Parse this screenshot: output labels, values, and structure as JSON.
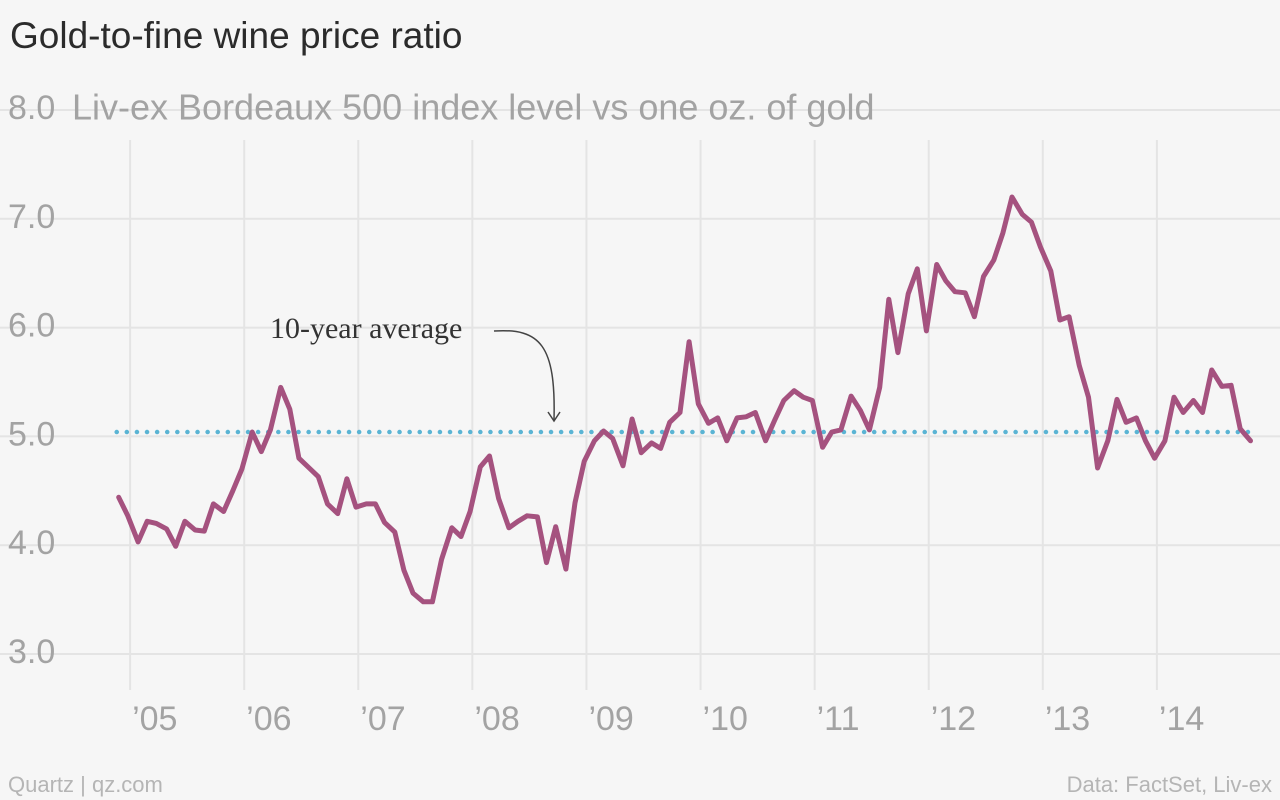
{
  "chart_data": {
    "type": "line",
    "title": "Gold-to-fine wine price ratio",
    "subtitle": "Liv-ex Bordeaux 500 index level vs one oz. of gold",
    "source": "Data: FactSet, Liv-ex",
    "credit": "Quartz | qz.com",
    "x": [
      2004.9,
      2004.98,
      2005.07,
      2005.15,
      2005.23,
      2005.32,
      2005.4,
      2005.48,
      2005.57,
      2005.65,
      2005.73,
      2005.82,
      2005.9,
      2005.98,
      2006.07,
      2006.15,
      2006.23,
      2006.32,
      2006.4,
      2006.48,
      2006.57,
      2006.65,
      2006.73,
      2006.82,
      2006.9,
      2006.98,
      2007.07,
      2007.15,
      2007.23,
      2007.32,
      2007.4,
      2007.48,
      2007.57,
      2007.65,
      2007.73,
      2007.82,
      2007.9,
      2007.98,
      2008.07,
      2008.15,
      2008.23,
      2008.32,
      2008.4,
      2008.48,
      2008.57,
      2008.65,
      2008.73,
      2008.82,
      2008.9,
      2008.98,
      2009.07,
      2009.15,
      2009.23,
      2009.32,
      2009.4,
      2009.48,
      2009.57,
      2009.65,
      2009.73,
      2009.82,
      2009.9,
      2009.98,
      2010.07,
      2010.15,
      2010.23,
      2010.32,
      2010.4,
      2010.48,
      2010.57,
      2010.65,
      2010.73,
      2010.82,
      2010.9,
      2010.98,
      2011.07,
      2011.15,
      2011.23,
      2011.32,
      2011.4,
      2011.48,
      2011.57,
      2011.65,
      2011.73,
      2011.82,
      2011.9,
      2011.98,
      2012.07,
      2012.15,
      2012.23,
      2012.32,
      2012.4,
      2012.48,
      2012.57,
      2012.65,
      2012.73,
      2012.82,
      2012.9,
      2012.98,
      2013.07,
      2013.15,
      2013.23,
      2013.32,
      2013.4,
      2013.48,
      2013.57,
      2013.65,
      2013.73,
      2013.82,
      2013.9,
      2013.98,
      2014.07,
      2014.15,
      2014.23,
      2014.32,
      2014.4,
      2014.48,
      2014.57,
      2014.65,
      2014.73,
      2014.82
    ],
    "series": [
      {
        "name": "Gold-to-fine wine price ratio",
        "color": "#a5527f",
        "values": [
          4.44,
          4.27,
          4.03,
          4.22,
          4.2,
          4.15,
          3.99,
          4.22,
          4.14,
          4.13,
          4.38,
          4.31,
          4.5,
          4.7,
          5.04,
          4.86,
          5.06,
          5.45,
          5.25,
          4.8,
          4.71,
          4.63,
          4.38,
          4.29,
          4.61,
          4.35,
          4.38,
          4.38,
          4.21,
          4.12,
          3.77,
          3.56,
          3.48,
          3.48,
          3.87,
          4.16,
          4.08,
          4.31,
          4.72,
          4.82,
          4.43,
          4.16,
          4.22,
          4.27,
          4.26,
          3.84,
          4.17,
          3.78,
          4.39,
          4.77,
          4.96,
          5.05,
          4.98,
          4.73,
          5.16,
          4.85,
          4.94,
          4.89,
          5.13,
          5.22,
          5.87,
          5.3,
          5.12,
          5.17,
          4.96,
          5.17,
          5.18,
          5.22,
          4.96,
          5.15,
          5.33,
          5.42,
          5.36,
          5.33,
          4.9,
          5.04,
          5.06,
          5.37,
          5.24,
          5.06,
          5.45,
          6.26,
          5.77,
          6.31,
          6.54,
          5.97,
          6.58,
          6.43,
          6.33,
          6.32,
          6.1,
          6.47,
          6.62,
          6.87,
          7.2,
          7.04,
          6.97,
          6.74,
          6.52,
          6.07,
          6.1,
          5.65,
          5.36,
          4.71,
          4.96,
          5.34,
          5.13,
          5.17,
          4.96,
          4.8,
          4.96,
          5.36,
          5.22,
          5.33,
          5.22,
          5.61,
          5.46,
          5.47,
          5.07,
          4.96
        ]
      }
    ],
    "average": {
      "label": "10-year average",
      "value": 5.04,
      "color": "#5ab4d4"
    },
    "xlim": [
      2004,
      2015
    ],
    "xticks": [
      {
        "value": 2005,
        "label": "’05"
      },
      {
        "value": 2006,
        "label": "’06"
      },
      {
        "value": 2007,
        "label": "’07"
      },
      {
        "value": 2008,
        "label": "’08"
      },
      {
        "value": 2009,
        "label": "’09"
      },
      {
        "value": 2010,
        "label": "’10"
      },
      {
        "value": 2011,
        "label": "’11"
      },
      {
        "value": 2012,
        "label": "’12"
      },
      {
        "value": 2013,
        "label": "’13"
      },
      {
        "value": 2014,
        "label": "’14"
      }
    ],
    "ylim": [
      3,
      8
    ],
    "yticks": [
      {
        "value": 3,
        "label": "3.0"
      },
      {
        "value": 4,
        "label": "4.0"
      },
      {
        "value": 5,
        "label": "5.0"
      },
      {
        "value": 6,
        "label": "6.0"
      },
      {
        "value": 7,
        "label": "7.0"
      },
      {
        "value": 8,
        "label": "8.0"
      }
    ],
    "grid": true
  }
}
